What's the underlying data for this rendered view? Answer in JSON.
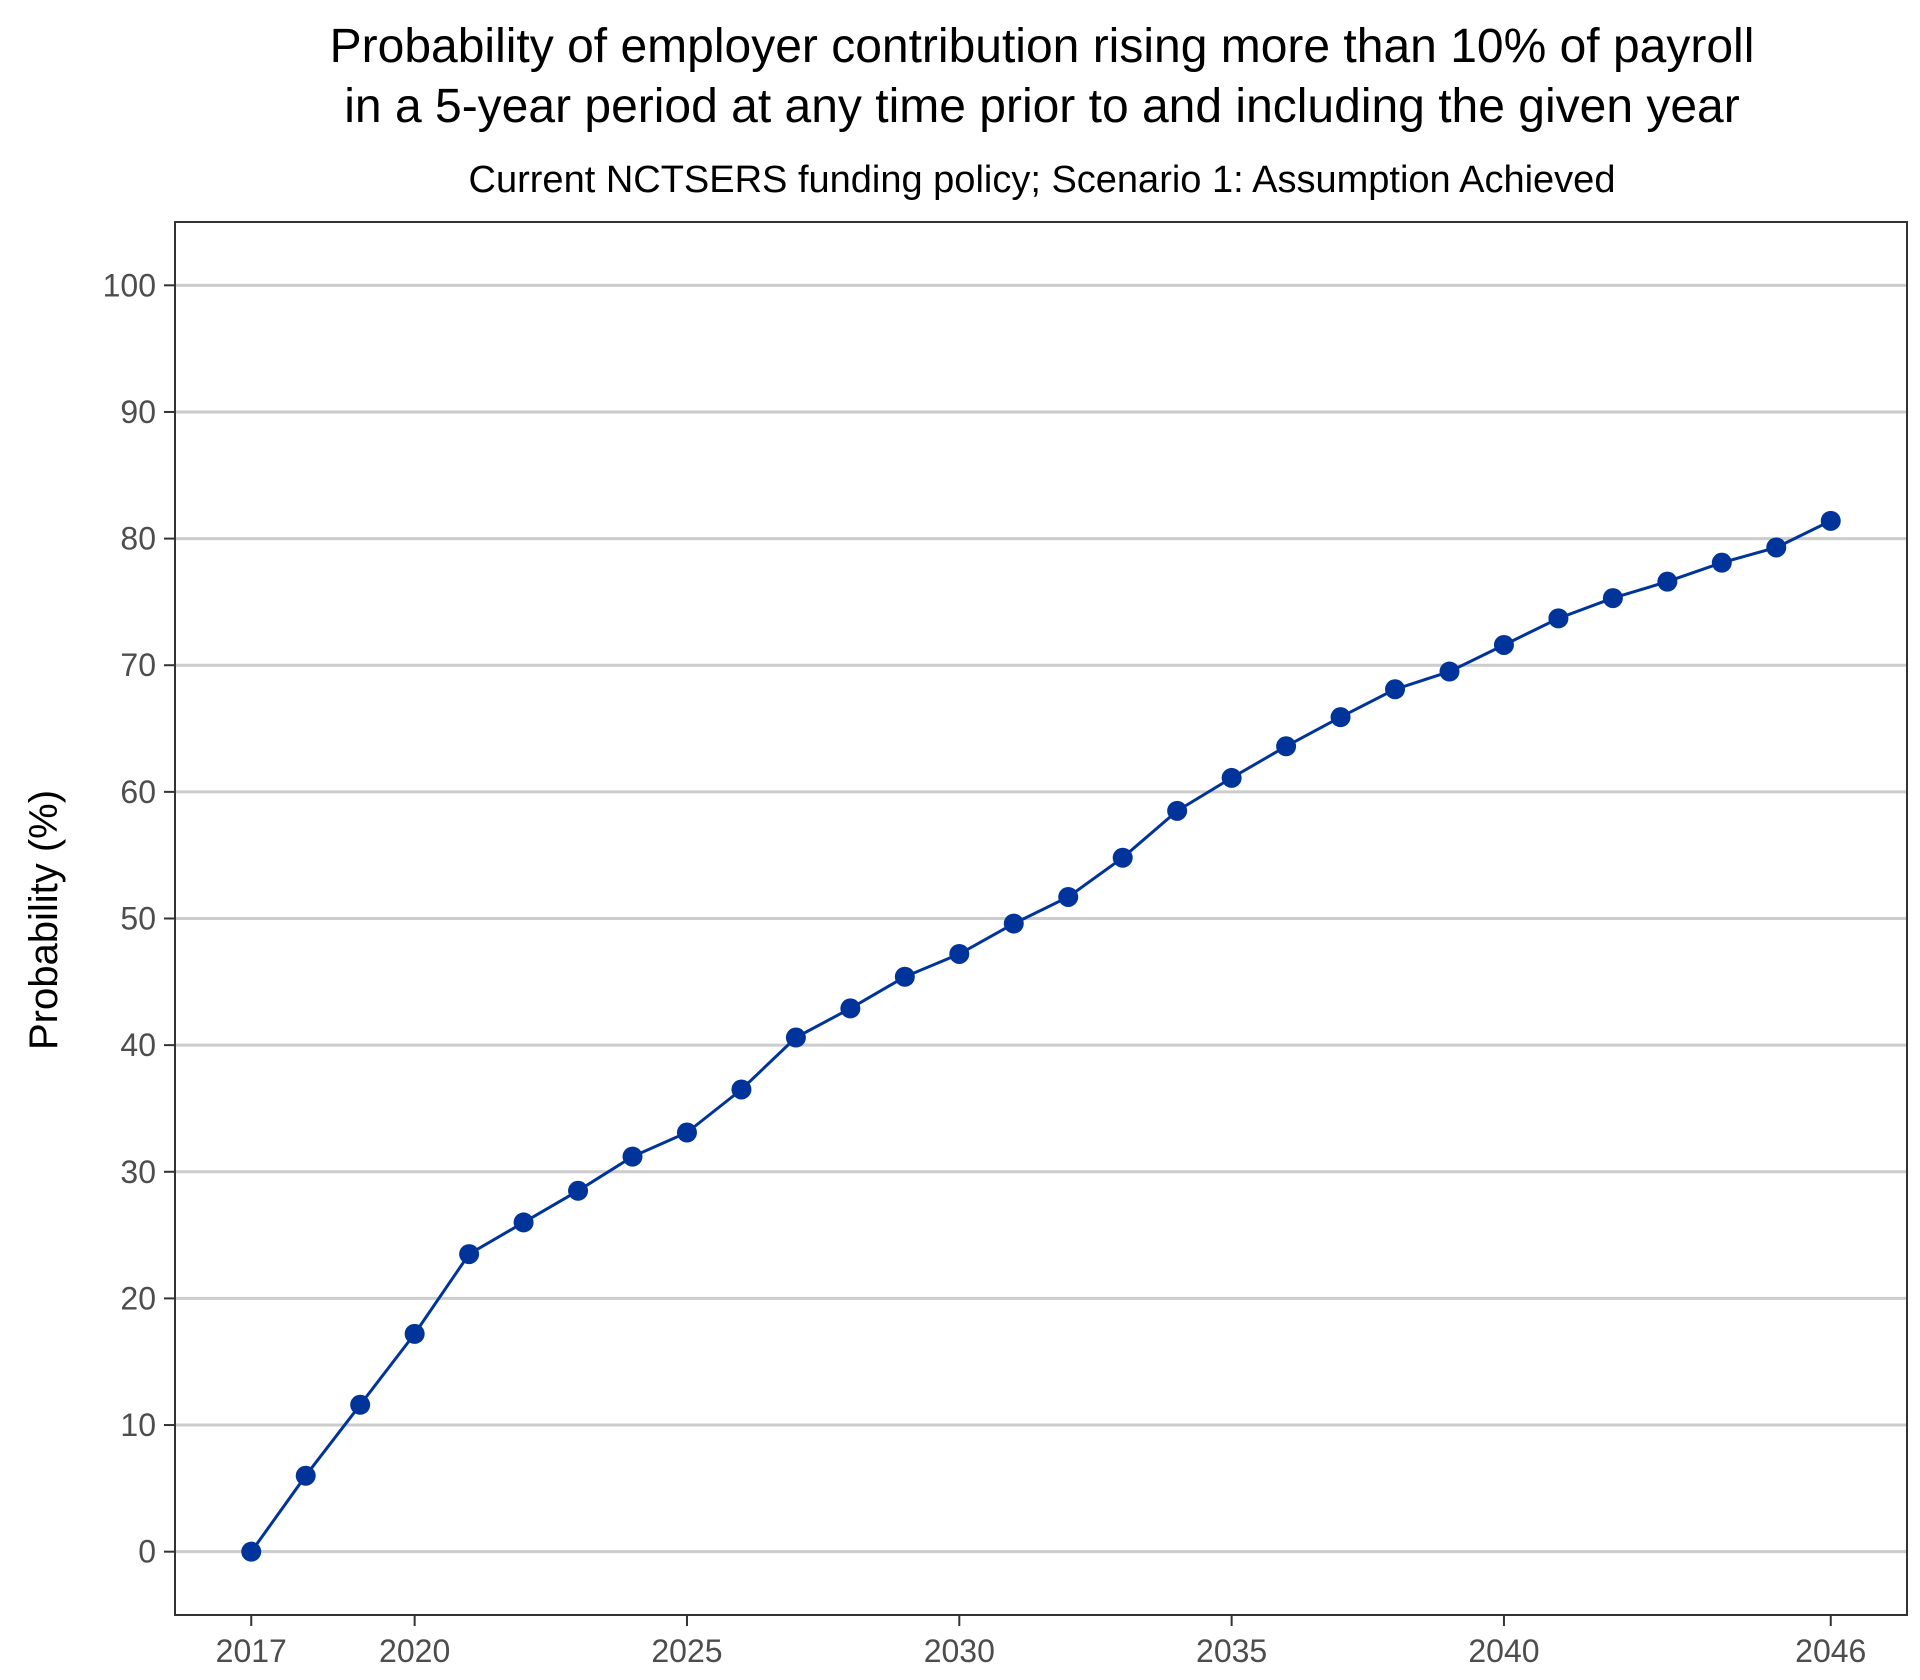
{
  "chart_data": {
    "type": "line",
    "title_lines": [
      "Probability of employer contribution rising more than 10% of payroll",
      "in a 5-year period at any time prior to and including the given year"
    ],
    "subtitle": "Current NCTSERS funding policy; Scenario 1: Assumption Achieved",
    "xlabel": "",
    "ylabel": "Probability (%)",
    "xlim": [
      2015.6,
      2047.4
    ],
    "ylim": [
      -5,
      105
    ],
    "x_ticks": [
      2017,
      2020,
      2025,
      2030,
      2035,
      2040,
      2046
    ],
    "y_ticks": [
      0,
      10,
      20,
      30,
      40,
      50,
      60,
      70,
      80,
      90,
      100
    ],
    "grid": "horizontal",
    "colors": {
      "series": "#00349a",
      "grid": "#cccccc",
      "frame": "#333333"
    },
    "series": [
      {
        "x": [
          2017,
          2018,
          2019,
          2020,
          2021,
          2022,
          2023,
          2024,
          2025,
          2026,
          2027,
          2028,
          2029,
          2030,
          2031,
          2032,
          2033,
          2034,
          2035,
          2036,
          2037,
          2038,
          2039,
          2040,
          2041,
          2042,
          2043,
          2044,
          2045,
          2046
        ],
        "values": [
          0,
          6.0,
          11.6,
          17.2,
          23.5,
          26.0,
          28.5,
          31.2,
          33.1,
          36.5,
          40.6,
          42.9,
          45.4,
          47.2,
          49.6,
          51.7,
          54.8,
          58.5,
          61.1,
          63.6,
          65.9,
          68.1,
          69.5,
          71.6,
          73.7,
          75.3,
          76.6,
          78.1,
          79.3,
          81.4
        ]
      }
    ]
  }
}
